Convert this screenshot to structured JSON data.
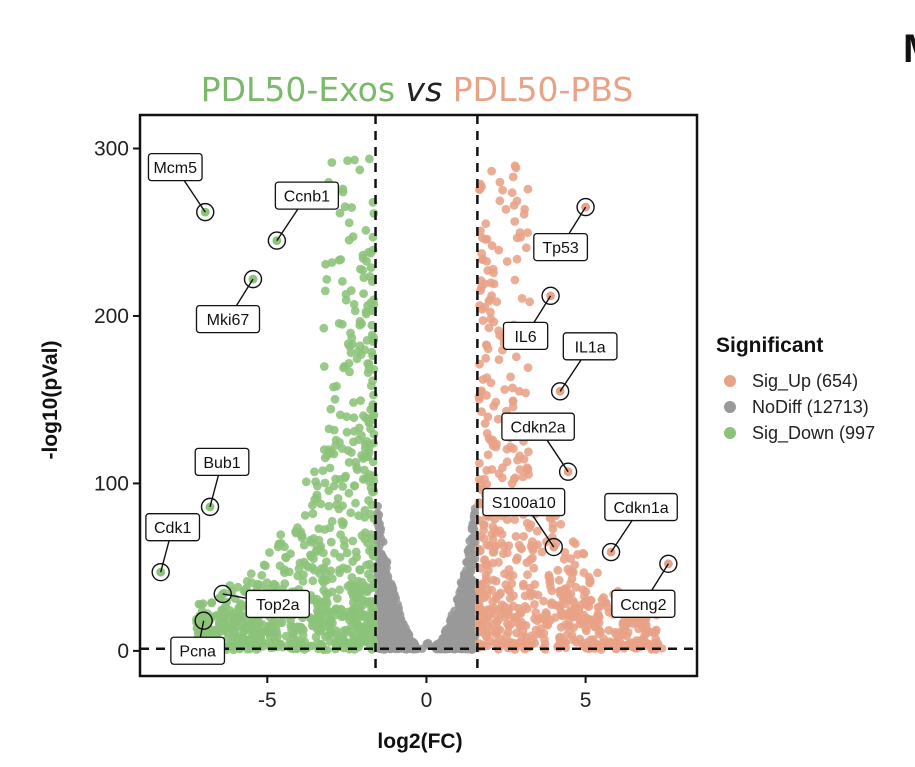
{
  "corner_letter": "M",
  "chart_data": {
    "type": "scatter",
    "title_parts": [
      {
        "text": "PDL50-Exos",
        "color": "#7ab86a",
        "italic": false
      },
      {
        "text": " vs ",
        "color": "#222222",
        "italic": true
      },
      {
        "text": "PDL50-PBS",
        "color": "#e8a286",
        "italic": false
      }
    ],
    "xlabel": "log2(FC)",
    "ylabel": "-log10(pVal)",
    "xlim": [
      -9,
      8.5
    ],
    "ylim": [
      -15,
      320
    ],
    "xticks": [
      -5,
      0,
      5
    ],
    "xtick_labels": [
      "-5",
      "0",
      "5"
    ],
    "yticks": [
      0,
      100,
      200,
      300
    ],
    "ytick_labels": [
      "0",
      "100",
      "200",
      "300"
    ],
    "thresholds": {
      "log2fc": [
        -1.6,
        1.6
      ],
      "neglog10p": 1.3
    },
    "grid": false,
    "legend": {
      "title": "Significant",
      "placement": "right",
      "entries": [
        {
          "label": "Sig_Up (654)",
          "color": "#e8a286"
        },
        {
          "label": "NoDiff (12713)",
          "color": "#999999"
        },
        {
          "label": "Sig_Down (997",
          "color": "#8cc37a"
        }
      ]
    },
    "series": [
      {
        "name": "Sig_Up",
        "color": "#e8a286"
      },
      {
        "name": "NoDiff",
        "color": "#999999"
      },
      {
        "name": "Sig_Down",
        "color": "#8cc37a"
      }
    ],
    "labeled_genes": [
      {
        "gene": "Mcm5",
        "x": -6.95,
        "y": 262,
        "group": "Sig_Down",
        "label_dir": "up-left"
      },
      {
        "gene": "Ccnb1",
        "x": -4.7,
        "y": 245,
        "group": "Sig_Down",
        "label_dir": "up-right"
      },
      {
        "gene": "Mki67",
        "x": -5.45,
        "y": 222,
        "group": "Sig_Down",
        "label_dir": "down-left"
      },
      {
        "gene": "Bub1",
        "x": -6.8,
        "y": 86,
        "group": "Sig_Down",
        "label_dir": "up"
      },
      {
        "gene": "Cdk1",
        "x": -8.35,
        "y": 47,
        "group": "Sig_Down",
        "label_dir": "up"
      },
      {
        "gene": "Top2a",
        "x": -6.4,
        "y": 34,
        "group": "Sig_Down",
        "label_dir": "down-right"
      },
      {
        "gene": "Pcna",
        "x": -7.0,
        "y": 18,
        "group": "Sig_Down",
        "label_dir": "down"
      },
      {
        "gene": "Tp53",
        "x": 5.0,
        "y": 265,
        "group": "Sig_Up",
        "label_dir": "down-left"
      },
      {
        "gene": "IL6",
        "x": 3.9,
        "y": 212,
        "group": "Sig_Up",
        "label_dir": "down-left"
      },
      {
        "gene": "IL1a",
        "x": 4.2,
        "y": 155,
        "group": "Sig_Up",
        "label_dir": "up-right"
      },
      {
        "gene": "Cdkn2a",
        "x": 4.45,
        "y": 107,
        "group": "Sig_Up",
        "label_dir": "up-left"
      },
      {
        "gene": "S100a10",
        "x": 4.0,
        "y": 62,
        "group": "Sig_Up",
        "label_dir": "up-left"
      },
      {
        "gene": "Cdkn1a",
        "x": 5.8,
        "y": 59,
        "group": "Sig_Up",
        "label_dir": "up-right"
      },
      {
        "gene": "Ccng2",
        "x": 7.6,
        "y": 52,
        "group": "Sig_Up",
        "label_dir": "down-left"
      }
    ]
  }
}
